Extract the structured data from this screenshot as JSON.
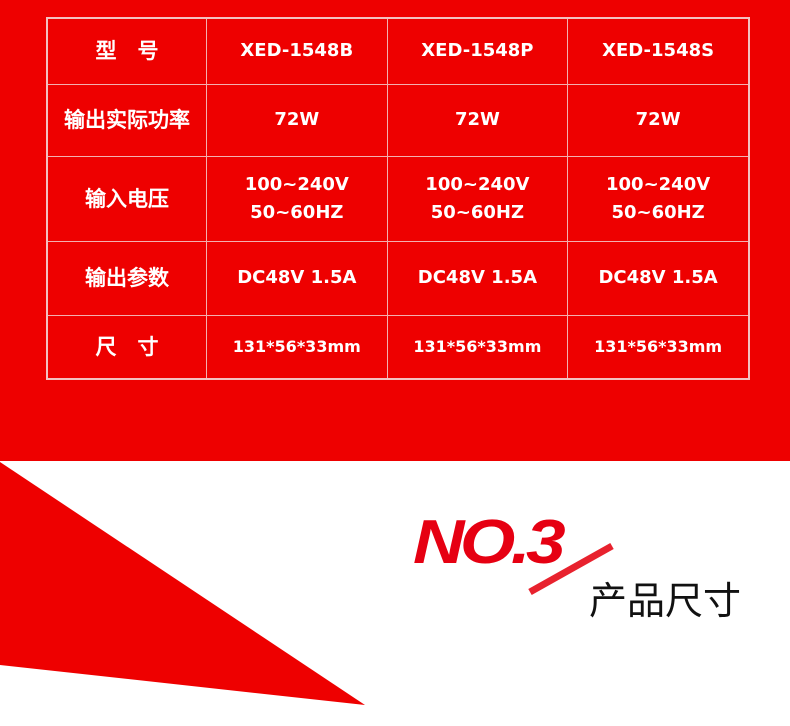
{
  "colors": {
    "brand_red": "#ee0000",
    "text_dark": "#111111"
  },
  "table": {
    "rows": [
      {
        "label": "型　号",
        "values": [
          "XED-1548B",
          "XED-1548P",
          "XED-1548S"
        ]
      },
      {
        "label": "输出实际功率",
        "values": [
          "72W",
          "72W",
          "72W"
        ]
      },
      {
        "label": "输入电压",
        "values": [
          "100~240V\n50~60HZ",
          "100~240V\n50~60HZ",
          "100~240V\n50~60HZ"
        ]
      },
      {
        "label": "输出参数",
        "values": [
          "DC48V 1.5A",
          "DC48V 1.5A",
          "DC48V 1.5A"
        ]
      },
      {
        "label": "尺　寸",
        "values": [
          "131*56*33mm",
          "131*56*33mm",
          "131*56*33mm"
        ]
      }
    ]
  },
  "section": {
    "number": "NO.3",
    "title": "产品尺寸"
  }
}
